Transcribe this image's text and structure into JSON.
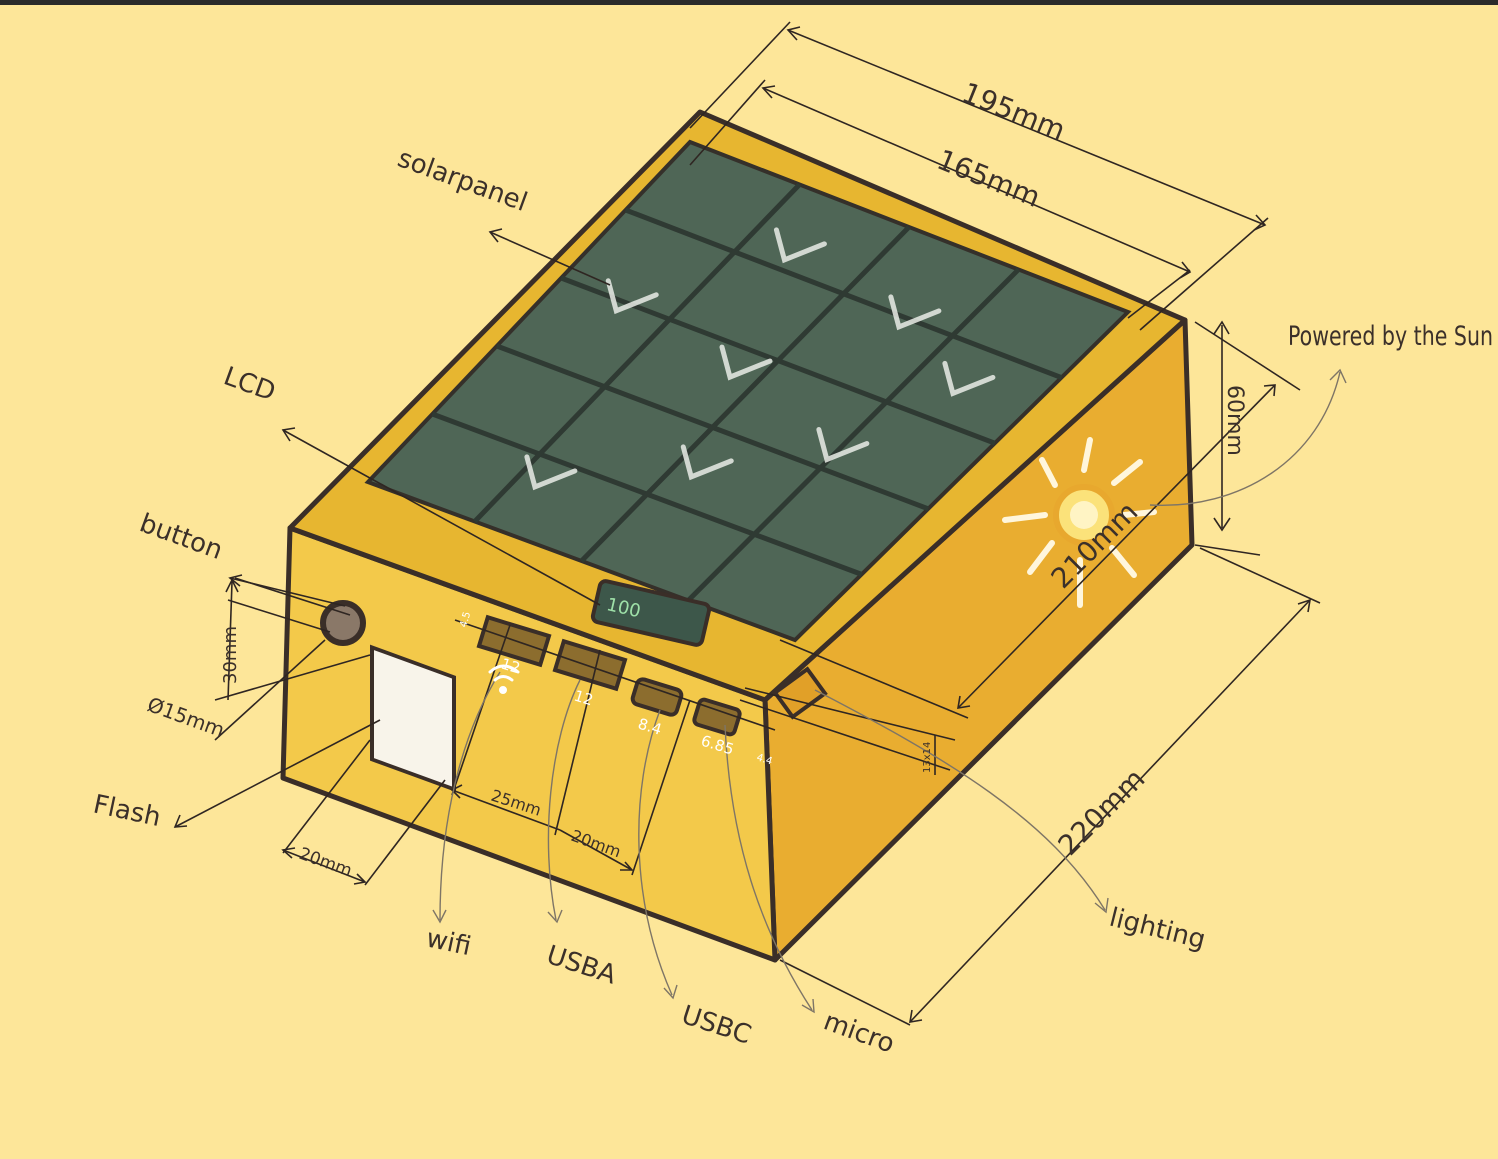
{
  "labels": {
    "solar_panel": "solarpanel",
    "lcd": "LCD",
    "button": "button",
    "flash": "Flash",
    "wifi": "wifi",
    "usb_a": "USBA",
    "usb_c": "USBC",
    "micro": "micro",
    "lighting": "lighting",
    "powered_by": "Powered by the Sun"
  },
  "dimensions": {
    "top_outer": "195mm",
    "top_inner": "165mm",
    "height": "60mm",
    "side_length": "210mm",
    "bottom_length": "220mm",
    "button_offset": "30mm",
    "button_diameter": "Ø15mm",
    "flash_width": "20mm",
    "spacing_25": "25mm",
    "spacing_20": "20mm"
  },
  "port_marks": {
    "m1": "4.5",
    "m2": "12",
    "m3": "12",
    "m4": "8.4",
    "m5": "6.85",
    "m6": "4.4",
    "m7": "13x14"
  },
  "lcd_readout": "100",
  "colors": {
    "background": "#fde699",
    "box_front": "#f3c94a",
    "box_side": "#e9ad30",
    "box_top_rim": "#e7b630",
    "solar_cell": "#4f6656",
    "ink": "#3a2e28"
  }
}
